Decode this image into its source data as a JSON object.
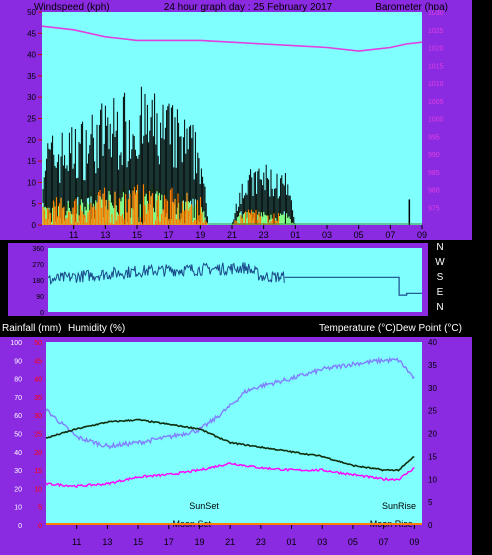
{
  "header": {
    "left": "Windspeed (kph)",
    "center": "24 hour graph day : 25 February 2017",
    "right": "Barometer (hpa)"
  },
  "colors": {
    "frame": "#8a2be2",
    "plot_bg": "#80ffff",
    "wind": "#000000",
    "gust_green": "#80ff80",
    "rain_orange": "#ff8000",
    "barometer": "#e040e0",
    "direction": "#1a4a8a",
    "temperature": "#103010",
    "dewpoint": "#ff00ff",
    "humidity": "#8080ff",
    "lower_plot_bg": "#80ffff",
    "red_labels": "#ff0000",
    "white_text": "#ffffff"
  },
  "chart_data": [
    {
      "type": "line",
      "name": "wind-barometer",
      "x_ticks": [
        "11",
        "13",
        "15",
        "17",
        "19",
        "21",
        "23",
        "01",
        "03",
        "05",
        "07",
        "09"
      ],
      "left_axis": {
        "label": "Windspeed (kph)",
        "range": [
          0,
          50
        ],
        "ticks": [
          0,
          5,
          10,
          15,
          20,
          25,
          30,
          35,
          40,
          45,
          50
        ]
      },
      "right_axis": {
        "label": "Barometer (hpa)",
        "range": [
          970,
          1030
        ],
        "ticks": [
          975,
          980,
          985,
          990,
          995,
          1000,
          1005,
          1010,
          1015,
          1020,
          1025,
          1030
        ]
      },
      "series": [
        {
          "name": "Barometer",
          "axis": "right",
          "x": [
            9,
            11,
            13,
            15,
            17,
            19,
            21,
            23,
            25,
            27,
            29,
            31,
            32,
            33
          ],
          "y": [
            1026,
            1025,
            1023,
            1022,
            1022,
            1022,
            1021.5,
            1021,
            1020.5,
            1020,
            1019,
            1020,
            1021,
            1021.5
          ]
        },
        {
          "name": "Windspeed",
          "axis": "left",
          "x": [
            9,
            11,
            13,
            15,
            17,
            19,
            19.5,
            21,
            21.5,
            23,
            24.5,
            25
          ],
          "y": [
            14,
            16,
            20,
            22,
            20,
            15,
            0,
            0,
            8,
            10,
            8,
            0
          ]
        }
      ]
    },
    {
      "type": "line",
      "name": "wind-direction",
      "x_ticks": [],
      "left_ticks": [
        "360",
        "270",
        "180",
        "90",
        "0"
      ],
      "right_labels": [
        "N",
        "W",
        "S",
        "E",
        "N"
      ],
      "series": [
        {
          "name": "Direction",
          "x": [
            9,
            11,
            13,
            15,
            17,
            19,
            21,
            22,
            23,
            25,
            30,
            32,
            32.5,
            33.5
          ],
          "y": [
            180,
            200,
            215,
            230,
            235,
            240,
            245,
            250,
            200,
            195,
            195,
            195,
            90,
            100
          ]
        }
      ]
    },
    {
      "type": "line",
      "name": "temp-humidity",
      "left_labels": {
        "rainfall": "Rainfall (mm)",
        "humidity": "Humidity (%)"
      },
      "right_label": "Temperature (°C)Dew Point (°C)",
      "x_ticks": [
        "11",
        "13",
        "15",
        "17",
        "19",
        "21",
        "23",
        "01",
        "03",
        "05",
        "07",
        "09"
      ],
      "left_axis": {
        "range": [
          0,
          100
        ],
        "ticks": [
          0,
          10,
          20,
          30,
          40,
          50,
          60,
          70,
          80,
          90,
          100
        ]
      },
      "rain_axis": {
        "range": [
          0,
          50
        ],
        "ticks": [
          0,
          5,
          10,
          15,
          20,
          25,
          30,
          35,
          40,
          45,
          50
        ]
      },
      "right_axis": {
        "range": [
          0,
          40
        ],
        "ticks": [
          0,
          5,
          10,
          15,
          20,
          25,
          30,
          35,
          40
        ]
      },
      "annotations": {
        "sunset": "SunSet",
        "sunrise": "SunRise",
        "moonset": "Moon Set",
        "moonrise": "Moon Rise"
      },
      "series": [
        {
          "name": "Temperature",
          "axis": "right",
          "x": [
            9,
            11,
            13,
            15,
            17,
            19,
            21,
            23,
            25,
            27,
            29,
            31,
            32,
            33
          ],
          "y": [
            19,
            21,
            22.5,
            23,
            22,
            21,
            18,
            17,
            16,
            15,
            13,
            12,
            12,
            15
          ]
        },
        {
          "name": "Dew Point",
          "axis": "right",
          "x": [
            9,
            11,
            13,
            15,
            17,
            19,
            21,
            23,
            25,
            27,
            29,
            31,
            32,
            33
          ],
          "y": [
            9,
            8.5,
            9,
            10.5,
            11,
            12,
            13.5,
            12.5,
            12,
            12,
            11,
            10,
            10,
            12.5
          ]
        },
        {
          "name": "Humidity",
          "axis": "left",
          "x": [
            9,
            11,
            13,
            15,
            17,
            19,
            20,
            21,
            22,
            23,
            25,
            27,
            29,
            31,
            32,
            33
          ],
          "y": [
            63,
            48,
            43,
            45,
            48,
            52,
            58,
            65,
            73,
            76,
            80,
            85,
            88,
            90,
            90,
            80
          ]
        }
      ]
    }
  ]
}
